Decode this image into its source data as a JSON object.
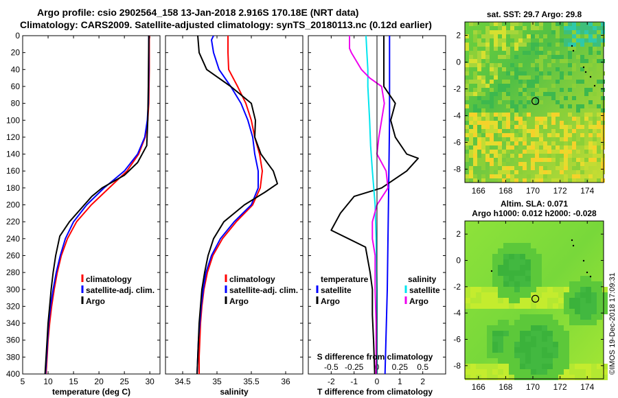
{
  "header": {
    "title_line1": "Argo profile: csio 2902564_158 13-Jan-2018 2.916S 170.18E (NRT data)",
    "title_line2": "Climatology: CARS2009. Satellite-adjusted climatology: synTS_20180113.nc (0.12d earlier)"
  },
  "colors": {
    "climatology": "#ff0000",
    "satellite": "#0000ff",
    "argo": "#000000",
    "sat_salinity": "#00e5ee",
    "sat_salinity_diff": "#ee00ee"
  },
  "chart_data": [
    {
      "id": "temperature",
      "type": "line",
      "xlabel": "temperature (deg C)",
      "xlim": [
        5,
        32
      ],
      "ylim": [
        0,
        400
      ],
      "xticks": [
        "5",
        "10",
        "15",
        "20",
        "25",
        "30"
      ],
      "xtick_values": [
        5,
        10,
        15,
        20,
        25,
        30
      ],
      "yticks": [
        "0",
        "20",
        "40",
        "60",
        "80",
        "100",
        "120",
        "140",
        "160",
        "180",
        "200",
        "220",
        "240",
        "260",
        "280",
        "300",
        "320",
        "340",
        "360",
        "380",
        "400"
      ],
      "ytick_values": [
        0,
        20,
        40,
        60,
        80,
        100,
        120,
        140,
        160,
        180,
        200,
        220,
        240,
        260,
        280,
        300,
        320,
        340,
        360,
        380,
        400
      ],
      "legend": [
        "climatology",
        "satellite-adj. clim.",
        "Argo"
      ],
      "series": [
        {
          "name": "climatology",
          "depth": [
            0,
            40,
            80,
            100,
            120,
            140,
            160,
            180,
            200,
            220,
            240,
            260,
            280,
            300,
            320,
            340,
            360,
            380,
            400
          ],
          "values": [
            29.9,
            29.9,
            29.8,
            29.6,
            29.1,
            27.8,
            25.5,
            22.0,
            18.5,
            15.6,
            13.8,
            12.6,
            11.8,
            11.2,
            10.7,
            10.3,
            10.0,
            9.8,
            9.6
          ]
        },
        {
          "name": "satellite-adj. clim.",
          "depth": [
            0,
            40,
            80,
            100,
            120,
            140,
            160,
            180,
            200,
            220,
            240,
            260,
            280,
            300,
            320,
            340,
            360,
            380,
            400
          ],
          "values": [
            29.8,
            29.8,
            29.7,
            29.5,
            29.0,
            27.6,
            25.0,
            21.0,
            17.6,
            15.0,
            13.4,
            12.4,
            11.6,
            11.0,
            10.5,
            10.1,
            9.9,
            9.7,
            9.5
          ]
        },
        {
          "name": "Argo",
          "depth": [
            0,
            60,
            100,
            130,
            150,
            165,
            180,
            190,
            205,
            220,
            237,
            260,
            280,
            300,
            320,
            340,
            360,
            380,
            400
          ],
          "values": [
            29.8,
            29.7,
            29.6,
            29.4,
            27.6,
            25.0,
            20.6,
            18.6,
            16.4,
            14.2,
            12.3,
            11.5,
            11.0,
            10.6,
            10.3,
            10.0,
            9.8,
            9.6,
            9.4
          ]
        }
      ]
    },
    {
      "id": "salinity",
      "type": "line",
      "xlabel": "salinity",
      "xlim": [
        34.25,
        36.25
      ],
      "ylim": [
        0,
        400
      ],
      "xticks": [
        "34.5",
        "35",
        "35.5",
        "36"
      ],
      "xtick_values": [
        34.5,
        35,
        35.5,
        36
      ],
      "legend": [
        "climatology",
        "satellite-adj. clim.",
        "Argo"
      ],
      "series": [
        {
          "name": "climatology",
          "depth": [
            0,
            20,
            40,
            60,
            80,
            100,
            120,
            140,
            160,
            180,
            200,
            220,
            240,
            260,
            280,
            300,
            320,
            340,
            360,
            380,
            400
          ],
          "values": [
            35.16,
            35.16,
            35.17,
            35.3,
            35.42,
            35.5,
            35.55,
            35.62,
            35.66,
            35.63,
            35.52,
            35.28,
            35.08,
            34.94,
            34.86,
            34.81,
            34.78,
            34.76,
            34.75,
            34.74,
            34.74
          ]
        },
        {
          "name": "satellite-adj. clim.",
          "depth": [
            0,
            5,
            20,
            40,
            60,
            80,
            100,
            120,
            140,
            160,
            180,
            200,
            220,
            240,
            260,
            280,
            300,
            320,
            340,
            360,
            380,
            400
          ],
          "values": [
            34.95,
            34.92,
            34.95,
            35.03,
            35.2,
            35.35,
            35.45,
            35.52,
            35.55,
            35.6,
            35.6,
            35.5,
            35.25,
            35.05,
            34.92,
            34.84,
            34.8,
            34.77,
            34.75,
            34.73,
            34.72,
            34.71
          ]
        },
        {
          "name": "Argo",
          "depth": [
            0,
            20,
            40,
            60,
            80,
            100,
            120,
            140,
            150,
            160,
            175,
            185,
            200,
            220,
            240,
            260,
            280,
            300,
            320,
            340,
            360,
            380,
            400
          ],
          "values": [
            34.72,
            34.74,
            34.85,
            35.2,
            35.5,
            35.56,
            35.55,
            35.64,
            35.73,
            35.82,
            35.88,
            35.7,
            35.4,
            35.1,
            34.95,
            34.87,
            34.82,
            34.78,
            34.76,
            34.74,
            34.73,
            34.72,
            34.71
          ]
        }
      ]
    },
    {
      "id": "differences",
      "type": "line",
      "xlabel": "T difference from climatology",
      "xlim": [
        -3,
        3
      ],
      "ylim": [
        0,
        400
      ],
      "xticks": [
        "-2",
        "-1",
        "0",
        "1",
        "2"
      ],
      "xtick_values": [
        -2,
        -1,
        0,
        1,
        2
      ],
      "top_axis_label": "S difference from climatology",
      "top_ticks": [
        "-0.5",
        "-0.25",
        "0",
        "0.25",
        "0.5"
      ],
      "top_tick_values": [
        -0.5,
        -0.25,
        0,
        0.25,
        0.5
      ],
      "legend_temperature_title": "temperature",
      "legend_salinity_title": "salinity",
      "legend_temperature": [
        "satellite",
        "Argo"
      ],
      "legend_salinity": [
        "satellite",
        "Argo"
      ],
      "series": [
        {
          "name": "T satellite",
          "depth": [
            0,
            100,
            200,
            300,
            400
          ],
          "values": [
            0.55,
            0.55,
            0.5,
            0.45,
            0.35
          ]
        },
        {
          "name": "T Argo",
          "depth": [
            0,
            60,
            80,
            100,
            120,
            140,
            145,
            160,
            180,
            190,
            210,
            230,
            250,
            280,
            300,
            330,
            360,
            400
          ],
          "values": [
            0.3,
            0.3,
            0.8,
            0.6,
            0.8,
            1.3,
            1.8,
            1.3,
            0.2,
            -1.0,
            -1.6,
            -2.0,
            -0.5,
            -0.3,
            -0.2,
            -0.2,
            -0.15,
            -0.1
          ]
        },
        {
          "name": "S satellite",
          "depth": [
            0,
            20,
            40,
            60,
            80,
            100,
            130,
            160,
            200,
            240,
            300,
            340,
            400
          ],
          "values": [
            -0.12,
            -0.11,
            -0.1,
            -0.1,
            -0.09,
            -0.08,
            -0.07,
            -0.05,
            -0.02,
            -0.01,
            0.0,
            0.0,
            0.0
          ]
        },
        {
          "name": "S Argo",
          "depth": [
            0,
            15,
            20,
            40,
            50,
            60,
            80,
            100,
            120,
            140,
            160,
            180,
            200,
            220,
            240,
            260,
            300,
            340,
            400
          ],
          "values": [
            -0.3,
            -0.3,
            -0.28,
            -0.17,
            -0.08,
            0.05,
            0.08,
            0.05,
            0.02,
            0.0,
            0.1,
            0.12,
            0.0,
            -0.05,
            -0.05,
            -0.02,
            -0.02,
            -0.01,
            -0.01
          ]
        }
      ]
    },
    {
      "id": "sst_map",
      "type": "heatmap",
      "title": "sat. SST: 29.7 Argo: 29.8",
      "xticks": [
        "166",
        "168",
        "170",
        "172",
        "174"
      ],
      "yticks": [
        "2",
        "0",
        "-2",
        "-4",
        "-6",
        "-8"
      ],
      "xlim": [
        165,
        175.2
      ],
      "ylim": [
        -9,
        3
      ],
      "marker": {
        "lon": 170.18,
        "lat": -2.916
      }
    },
    {
      "id": "sla_map",
      "type": "heatmap",
      "title": "Altim. SLA: 0.071",
      "subtitle": "Argo h1000: 0.012 h2000: -0.028",
      "xticks": [
        "166",
        "168",
        "170",
        "172",
        "174"
      ],
      "yticks": [
        "2",
        "0",
        "-2",
        "-4",
        "-6",
        "-8"
      ],
      "xlim": [
        165,
        175.2
      ],
      "ylim": [
        -9,
        3
      ],
      "marker": {
        "lon": 170.18,
        "lat": -2.916
      }
    }
  ],
  "credit": "©IMOS 19-Dec-2018 17:09:31"
}
